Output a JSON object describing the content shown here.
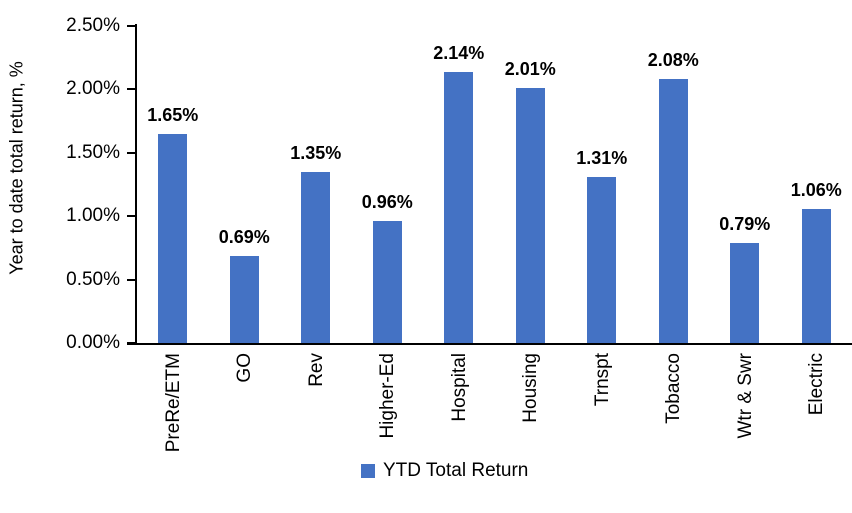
{
  "chart_data": {
    "type": "bar",
    "title": "",
    "ylabel": "Year to date total return, %",
    "xlabel": "",
    "categories": [
      "PreRe/ETM",
      "GO",
      "Rev",
      "Higher-Ed",
      "Hospital",
      "Housing",
      "Trnspt",
      "Tobacco",
      "Wtr & Swr",
      "Electric"
    ],
    "series": [
      {
        "name": "YTD Total Return",
        "values": [
          1.65,
          0.69,
          1.35,
          0.96,
          2.14,
          2.01,
          1.31,
          2.08,
          0.79,
          1.06
        ],
        "labels": [
          "1.65%",
          "0.69%",
          "1.35%",
          "0.96%",
          "2.14%",
          "2.01%",
          "1.31%",
          "2.08%",
          "0.79%",
          "1.06%"
        ]
      }
    ],
    "ylim": [
      0,
      2.5
    ],
    "ytick_step": 0.5,
    "ytick_labels": [
      "0.00%",
      "0.50%",
      "1.00%",
      "1.50%",
      "2.00%",
      "2.50%"
    ],
    "grid": false,
    "bar_color": "#4472C4",
    "axis_color": "#000000",
    "legend": {
      "position": "bottom",
      "entries": [
        {
          "label": "YTD Total Return",
          "color": "#4472C4"
        }
      ]
    }
  }
}
